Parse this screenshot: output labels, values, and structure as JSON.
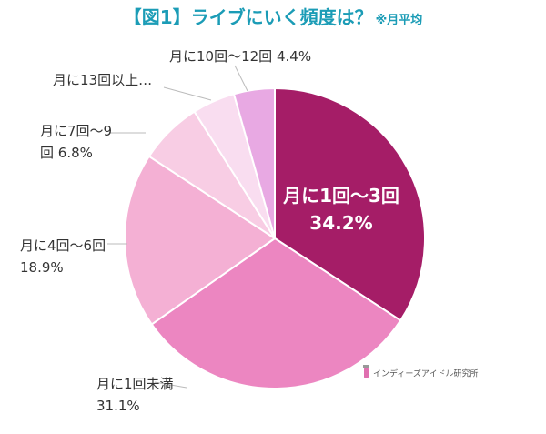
{
  "chart_data": {
    "type": "pie",
    "title": "【図1】ライブにいく頻度は？",
    "subtitle": "※月平均",
    "categories": [
      "月に1回～3回",
      "月に1回未満",
      "月に4回～6回",
      "月に7回～9回",
      "月に13回以上…",
      "月に10回～12回"
    ],
    "values": [
      34.2,
      31.1,
      18.9,
      6.8,
      4.6,
      4.4
    ],
    "value_labels": [
      "34.2%",
      "31.1%",
      "18.9%",
      "6.8%",
      null,
      "4.4%"
    ],
    "colors": [
      "#a51d67",
      "#ec86c1",
      "#f4b0d4",
      "#f8cde4",
      "#f9ddf0",
      "#e8a9e3"
    ],
    "watermark": "インディーズアイドル研究所"
  }
}
